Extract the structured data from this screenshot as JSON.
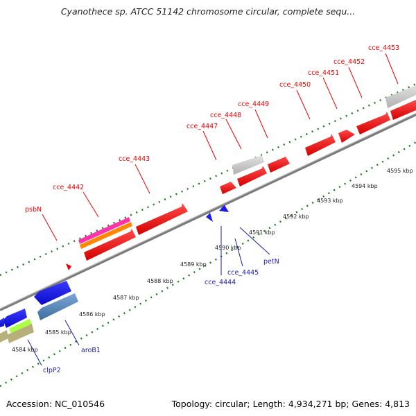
{
  "title": "Cyanothece sp. ATCC 51142 chromosome circular, complete sequ...",
  "accession": "Accession: NC_010546",
  "topology": "Topology: circular; Length: 4,934,271 bp; Genes: 4,813",
  "colors": {
    "forward_gene": "#ee0000",
    "reverse_gene": "#1a1aee",
    "pseudo": "#c8c8c8",
    "backbone": "#808080",
    "dots": "#1f7a1f",
    "top_label": "#ee0000",
    "bottom_label": "#1a1aaa"
  },
  "scale": {
    "ticks": [
      {
        "label": "4584 kbp"
      },
      {
        "label": "4585 kbp"
      },
      {
        "label": "4586 kbp"
      },
      {
        "label": "4587 kbp"
      },
      {
        "label": "4588 kbp"
      },
      {
        "label": "4589 kbp"
      },
      {
        "label": "4590 kbp"
      },
      {
        "label": "4591 kbp"
      },
      {
        "label": "4592 kbp"
      },
      {
        "label": "4593 kbp"
      },
      {
        "label": "4594 kbp"
      },
      {
        "label": "4595 kbp"
      }
    ]
  },
  "top_labels": [
    {
      "label": "psbN"
    },
    {
      "label": "cce_4442"
    },
    {
      "label": "cce_4443"
    },
    {
      "label": "cce_4447"
    },
    {
      "label": "cce_4448"
    },
    {
      "label": "cce_4449"
    },
    {
      "label": "cce_4450"
    },
    {
      "label": "cce_4451"
    },
    {
      "label": "cce_4452"
    },
    {
      "label": "cce_4453"
    }
  ],
  "bottom_labels": [
    {
      "label": "clpP2"
    },
    {
      "label": "aroB1"
    },
    {
      "label": "cce_4444"
    },
    {
      "label": "cce_4445"
    },
    {
      "label": "petN"
    }
  ]
}
